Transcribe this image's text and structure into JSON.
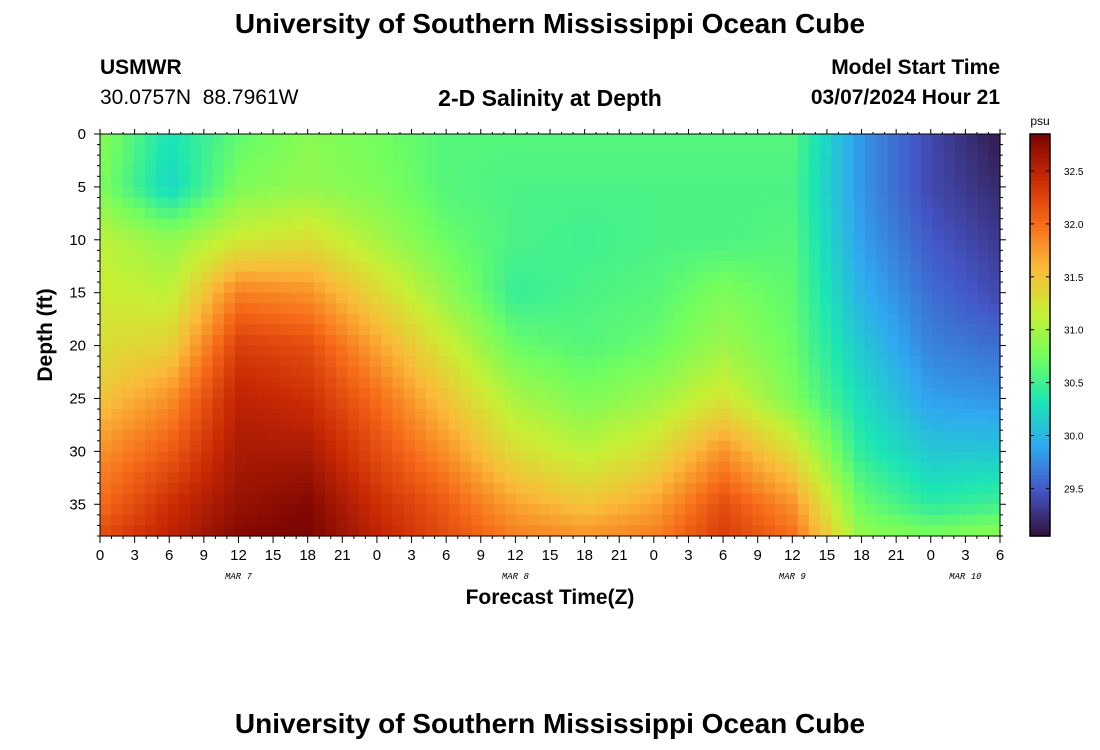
{
  "header": {
    "title": "University of Southern Mississippi Ocean Cube",
    "station": "USMWR",
    "coords": "30.0757N  88.7961W",
    "subtitle": "2-D Salinity at Depth",
    "model_label": "Model Start Time",
    "model_time": "03/07/2024 Hour 21"
  },
  "footer_title": "University of Southern Mississippi Ocean Cube",
  "chart_data": {
    "type": "heatmap",
    "xlabel": "Forecast Time(Z)",
    "ylabel": "Depth (ft)",
    "x_ticks": [
      "0",
      "3",
      "6",
      "9",
      "12",
      "15",
      "18",
      "21",
      "0",
      "3",
      "6",
      "9",
      "12",
      "15",
      "18",
      "21",
      "0",
      "3",
      "6",
      "9",
      "12",
      "15",
      "18",
      "21",
      "0",
      "3",
      "6"
    ],
    "day_labels": [
      {
        "label": "MAR 7",
        "hour": 12
      },
      {
        "label": "MAR 8",
        "hour": 36
      },
      {
        "label": "MAR 9",
        "hour": 60
      },
      {
        "label": "MAR 10",
        "hour": 75
      }
    ],
    "x_range_hours": [
      0,
      78
    ],
    "y_ticks": [
      0,
      5,
      10,
      15,
      20,
      25,
      30,
      35
    ],
    "y_range_ft": [
      0,
      38
    ],
    "colorbar": {
      "unit": "psu",
      "ticks": [
        29.5,
        30.0,
        30.5,
        31.0,
        31.5,
        32.0,
        32.5
      ],
      "range": [
        29.05,
        32.85
      ],
      "colormap": [
        "#30123b",
        "#4454c4",
        "#2fa8f1",
        "#1be5b5",
        "#71fe5f",
        "#c8ef34",
        "#faba39",
        "#f66b19",
        "#ca2a04",
        "#7a0403"
      ]
    },
    "salinity_grid": {
      "hours": [
        0,
        6,
        12,
        18,
        24,
        30,
        36,
        42,
        48,
        54,
        60,
        66,
        72,
        78
      ],
      "depths_ft": [
        0,
        5,
        10,
        15,
        20,
        25,
        30,
        35,
        38
      ],
      "values": [
        [
          30.85,
          30.3,
          30.65,
          30.85,
          30.75,
          30.6,
          30.6,
          30.6,
          30.6,
          30.6,
          30.6,
          29.8,
          29.4,
          29.1
        ],
        [
          30.8,
          30.2,
          30.8,
          30.9,
          30.8,
          30.6,
          30.55,
          30.55,
          30.55,
          30.55,
          30.55,
          29.8,
          29.4,
          29.2
        ],
        [
          31.1,
          30.9,
          31.2,
          31.3,
          31.0,
          30.7,
          30.55,
          30.5,
          30.55,
          30.55,
          30.6,
          29.85,
          29.5,
          29.3
        ],
        [
          31.2,
          31.1,
          31.9,
          31.8,
          31.35,
          30.9,
          30.45,
          30.55,
          30.6,
          30.8,
          30.65,
          29.95,
          29.6,
          29.4
        ],
        [
          31.3,
          31.4,
          32.3,
          32.2,
          31.7,
          31.2,
          30.7,
          30.6,
          30.7,
          30.95,
          30.7,
          30.1,
          29.7,
          29.6
        ],
        [
          31.5,
          31.8,
          32.5,
          32.4,
          32.0,
          31.5,
          31.0,
          30.8,
          30.95,
          31.25,
          30.8,
          30.25,
          29.85,
          29.8
        ],
        [
          31.8,
          32.1,
          32.6,
          32.6,
          32.2,
          31.8,
          31.3,
          31.1,
          31.3,
          31.8,
          31.3,
          30.4,
          30.1,
          30.1
        ],
        [
          32.0,
          32.4,
          32.7,
          32.8,
          32.4,
          32.1,
          31.7,
          31.5,
          31.7,
          32.2,
          31.8,
          30.7,
          30.4,
          30.5
        ],
        [
          32.2,
          32.5,
          32.8,
          32.85,
          32.5,
          32.2,
          31.9,
          31.8,
          31.9,
          32.3,
          32.0,
          30.9,
          30.8,
          30.9
        ]
      ]
    },
    "colors": {
      "axis": "#000000",
      "background": "#ffffff"
    }
  }
}
